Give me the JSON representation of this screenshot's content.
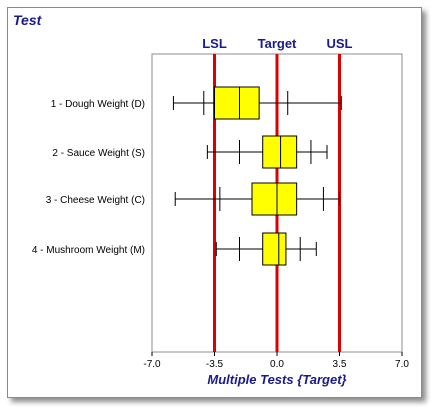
{
  "panel": {
    "title": "Test"
  },
  "chart_data": {
    "type": "boxplot",
    "orientation": "horizontal",
    "xlabel": "Multiple Tests {Target}",
    "xlim": [
      -7.0,
      7.0
    ],
    "xticks": [
      "-7.0",
      "-3.5",
      "0.0",
      "3.5",
      "7.0"
    ],
    "xtick_values": [
      -7.0,
      -3.5,
      0.0,
      3.5,
      7.0
    ],
    "reference_lines": [
      {
        "name": "LSL",
        "value": -3.5
      },
      {
        "name": "Target",
        "value": 0.0
      },
      {
        "name": "USL",
        "value": 3.5
      }
    ],
    "categories": [
      "1 - Dough Weight (D)",
      "2 - Sauce Weight (S)",
      "3 - Cheese Weight (C)",
      "4 - Mushroom Weight (M)"
    ],
    "boxes": [
      {
        "min": -5.8,
        "p10": -4.1,
        "q1": -3.5,
        "median": -2.1,
        "q3": -1.0,
        "p90": 0.6,
        "max": 3.6
      },
      {
        "min": -3.9,
        "p10": -2.1,
        "q1": -0.8,
        "median": 0.2,
        "q3": 1.1,
        "p90": 1.9,
        "max": 2.8
      },
      {
        "min": -5.7,
        "p10": -3.2,
        "q1": -1.4,
        "median": 0.0,
        "q3": 1.1,
        "p90": 2.6,
        "max": 3.5
      },
      {
        "min": -3.4,
        "p10": -2.1,
        "q1": -0.8,
        "median": 0.1,
        "q3": 0.5,
        "p90": 1.3,
        "max": 2.2
      }
    ],
    "colors": {
      "box_fill": "#ffff00",
      "reference_line": "#dd0000",
      "title": "#1a1a8c"
    },
    "grid": false,
    "legend": "none"
  }
}
